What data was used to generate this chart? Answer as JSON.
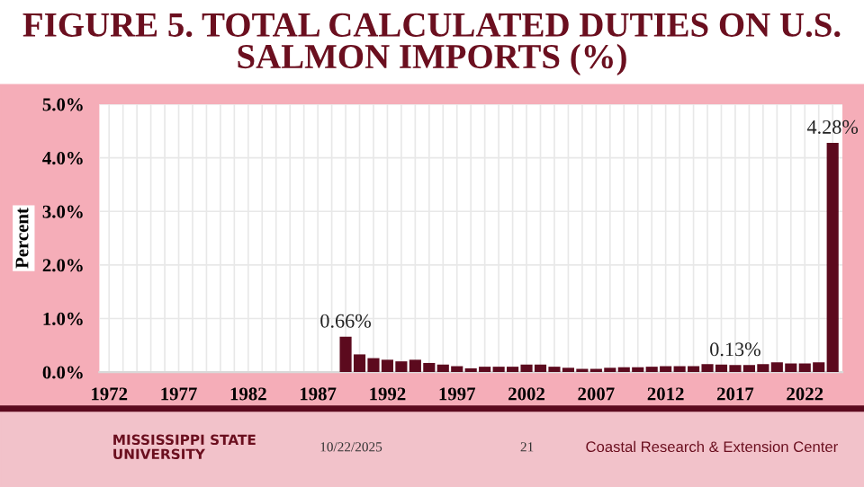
{
  "chart_data": {
    "type": "bar",
    "title": "FIGURE 5. TOTAL CALCULATED DUTIES ON U.S. SALMON IMPORTS (%)",
    "ylabel": "Percent",
    "categories": [
      "1972",
      null,
      null,
      null,
      null,
      "1977",
      null,
      null,
      null,
      null,
      "1982",
      null,
      null,
      null,
      null,
      "1987",
      null,
      null,
      null,
      null,
      "1992",
      null,
      null,
      null,
      null,
      "1997",
      null,
      null,
      null,
      null,
      "2002",
      null,
      null,
      null,
      null,
      "2007",
      null,
      null,
      null,
      null,
      "2012",
      null,
      null,
      null,
      null,
      "2017",
      null,
      null,
      null,
      null,
      "2022",
      null,
      null
    ],
    "values": [
      null,
      null,
      null,
      null,
      null,
      null,
      null,
      null,
      null,
      null,
      null,
      null,
      null,
      null,
      null,
      null,
      null,
      0.66,
      0.33,
      0.26,
      0.23,
      0.2,
      0.23,
      0.17,
      0.14,
      0.11,
      0.07,
      0.1,
      0.1,
      0.1,
      0.14,
      0.14,
      0.1,
      0.08,
      0.06,
      0.06,
      0.08,
      0.09,
      0.09,
      0.1,
      0.11,
      0.11,
      0.11,
      0.15,
      0.14,
      0.13,
      0.13,
      0.15,
      0.18,
      0.16,
      0.16,
      0.18,
      4.28
    ],
    "value_labels": [
      null,
      null,
      null,
      null,
      null,
      null,
      null,
      null,
      null,
      null,
      null,
      null,
      null,
      null,
      null,
      null,
      null,
      "0.66%",
      null,
      null,
      null,
      null,
      null,
      null,
      null,
      null,
      null,
      null,
      null,
      null,
      null,
      null,
      null,
      null,
      null,
      null,
      null,
      null,
      null,
      null,
      null,
      null,
      null,
      null,
      null,
      "0.13%",
      null,
      null,
      null,
      null,
      null,
      null,
      "4.28%"
    ],
    "color": "#5c0a1e",
    "ylim": [
      0,
      5
    ],
    "yticks": [
      {
        "value": 0,
        "label": "0.0%"
      },
      {
        "value": 1,
        "label": "1.0%"
      },
      {
        "value": 2,
        "label": "2.0%"
      },
      {
        "value": 3,
        "label": "3.0%"
      },
      {
        "value": 4,
        "label": "4.0%"
      },
      {
        "value": 5,
        "label": "5.0%"
      }
    ],
    "grid": true,
    "annotations": [
      "MISSISSIPPI STATE\nUNIVERSITY",
      "10/22/2025",
      "21",
      "Coastal Research & Extension Center"
    ]
  }
}
